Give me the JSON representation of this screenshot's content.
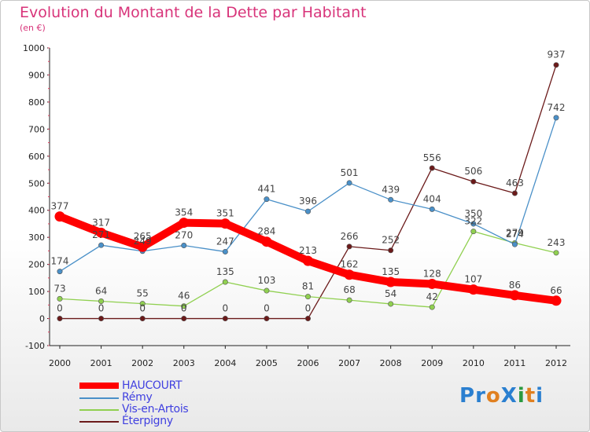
{
  "chart_data": {
    "type": "line",
    "title": "Evolution du Montant de la Dette par Habitant",
    "unit": "(en €)",
    "x": [
      "2000",
      "2001",
      "2002",
      "2003",
      "2004",
      "2005",
      "2006",
      "2007",
      "2008",
      "2009",
      "2010",
      "2011",
      "2012"
    ],
    "ylim": [
      -100,
      1000
    ],
    "yticks": [
      -100,
      0,
      100,
      200,
      300,
      400,
      500,
      600,
      700,
      800,
      900,
      1000
    ],
    "grid": false,
    "legend_position": "bottom-left",
    "series": [
      {
        "name": "HAUCOURT",
        "color": "#ff0000",
        "values": [
          377,
          317,
          265,
          354,
          351,
          284,
          213,
          162,
          135,
          128,
          107,
          86,
          66
        ]
      },
      {
        "name": "Rémy",
        "color": "#4a90c8",
        "values": [
          174,
          271,
          249,
          270,
          247,
          441,
          396,
          501,
          439,
          404,
          350,
          274,
          742
        ]
      },
      {
        "name": "Vis-en-Artois",
        "color": "#90d050",
        "values": [
          73,
          64,
          55,
          46,
          135,
          103,
          81,
          68,
          54,
          42,
          322,
          279,
          243
        ]
      },
      {
        "name": "Éterpigny",
        "color": "#6b1a1a",
        "values": [
          0,
          0,
          0,
          0,
          0,
          0,
          0,
          266,
          252,
          556,
          506,
          463,
          937
        ]
      }
    ]
  },
  "brand": {
    "text": "ProXiti",
    "letters": [
      "P",
      "r",
      "o",
      "X",
      "i",
      "t",
      "i"
    ],
    "colors": [
      "#2a7fd0",
      "#2a7fd0",
      "#e08020",
      "#2a7fd0",
      "#2a9a40",
      "#e08020",
      "#2a7fd0"
    ]
  }
}
